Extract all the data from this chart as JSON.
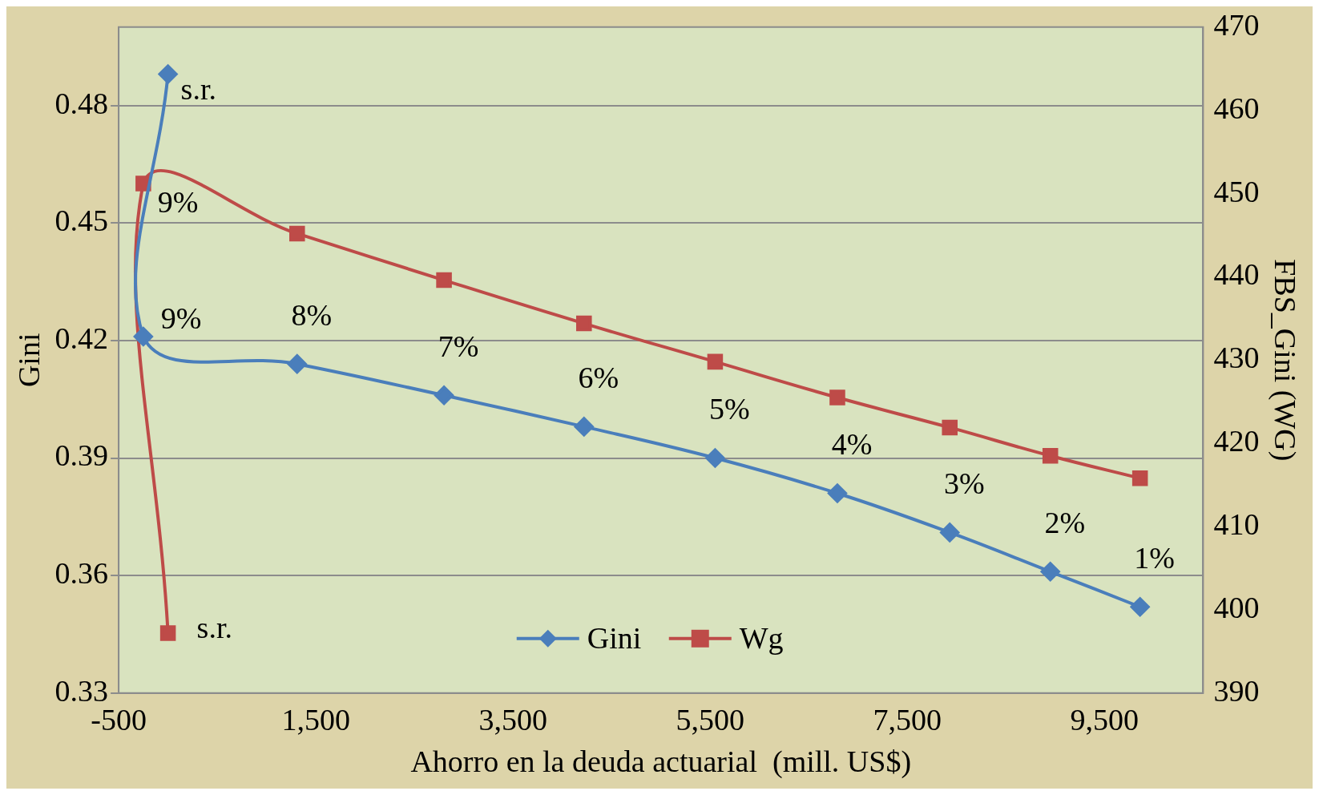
{
  "chart_data": {
    "type": "line",
    "xlabel": "Ahorro en la deuda actuarial  (mill. US$)",
    "ylabel": "Gini",
    "y2label": "FBS_Gini (WG)",
    "xlim": [
      -500,
      10500
    ],
    "xticks": [
      {
        "value": -500,
        "label": "-500"
      },
      {
        "value": 1500,
        "label": "1,500"
      },
      {
        "value": 3500,
        "label": "3,500"
      },
      {
        "value": 5500,
        "label": "5,500"
      },
      {
        "value": 7500,
        "label": "7,500"
      },
      {
        "value": 9500,
        "label": "9,500"
      }
    ],
    "ylim": [
      0.33,
      0.5
    ],
    "yticks": [
      0.33,
      0.36,
      0.39,
      0.42,
      0.45,
      0.48
    ],
    "y2lim": [
      390,
      470
    ],
    "y2ticks": [
      390,
      400,
      410,
      420,
      430,
      440,
      450,
      460,
      470
    ],
    "grid": "y",
    "legend": "bottom",
    "annotations": [
      {
        "text": "s.r.",
        "x": 0,
        "y": 0.488
      },
      {
        "text": "9%",
        "x": -250,
        "y": 0.421
      },
      {
        "text": "8%",
        "x": 1310,
        "y": 0.414
      },
      {
        "text": "7%",
        "x": 2800,
        "y": 0.406
      },
      {
        "text": "6%",
        "x": 4220,
        "y": 0.398
      },
      {
        "text": "5%",
        "x": 5550,
        "y": 0.39
      },
      {
        "text": "4%",
        "x": 6790,
        "y": 0.381
      },
      {
        "text": "3%",
        "x": 7930,
        "y": 0.371
      },
      {
        "text": "2%",
        "x": 8950,
        "y": 0.361
      },
      {
        "text": "1%",
        "x": 9860,
        "y": 0.352
      },
      {
        "text": "s.r.",
        "x": 0,
        "y": 0.3453
      },
      {
        "text": "9%",
        "x": -250,
        "y": 0.46
      }
    ],
    "series": [
      {
        "name": "Gini",
        "color": "#4a7ebb",
        "marker": "diamond",
        "x": [
          0,
          -250,
          1310,
          2800,
          4220,
          5550,
          6790,
          7930,
          8950,
          9860
        ],
        "values": [
          0.488,
          0.421,
          0.414,
          0.406,
          0.398,
          0.39,
          0.381,
          0.371,
          0.361,
          0.352
        ]
      },
      {
        "name": "Wg",
        "color": "#be4b48",
        "marker": "square",
        "axis": "y2",
        "x": [
          0,
          -250,
          1310,
          2800,
          4220,
          5550,
          6790,
          7930,
          8950,
          9860
        ],
        "values": [
          397.2,
          451.2,
          445.2,
          439.6,
          434.4,
          429.8,
          425.5,
          421.9,
          418.5,
          415.8
        ]
      }
    ]
  }
}
